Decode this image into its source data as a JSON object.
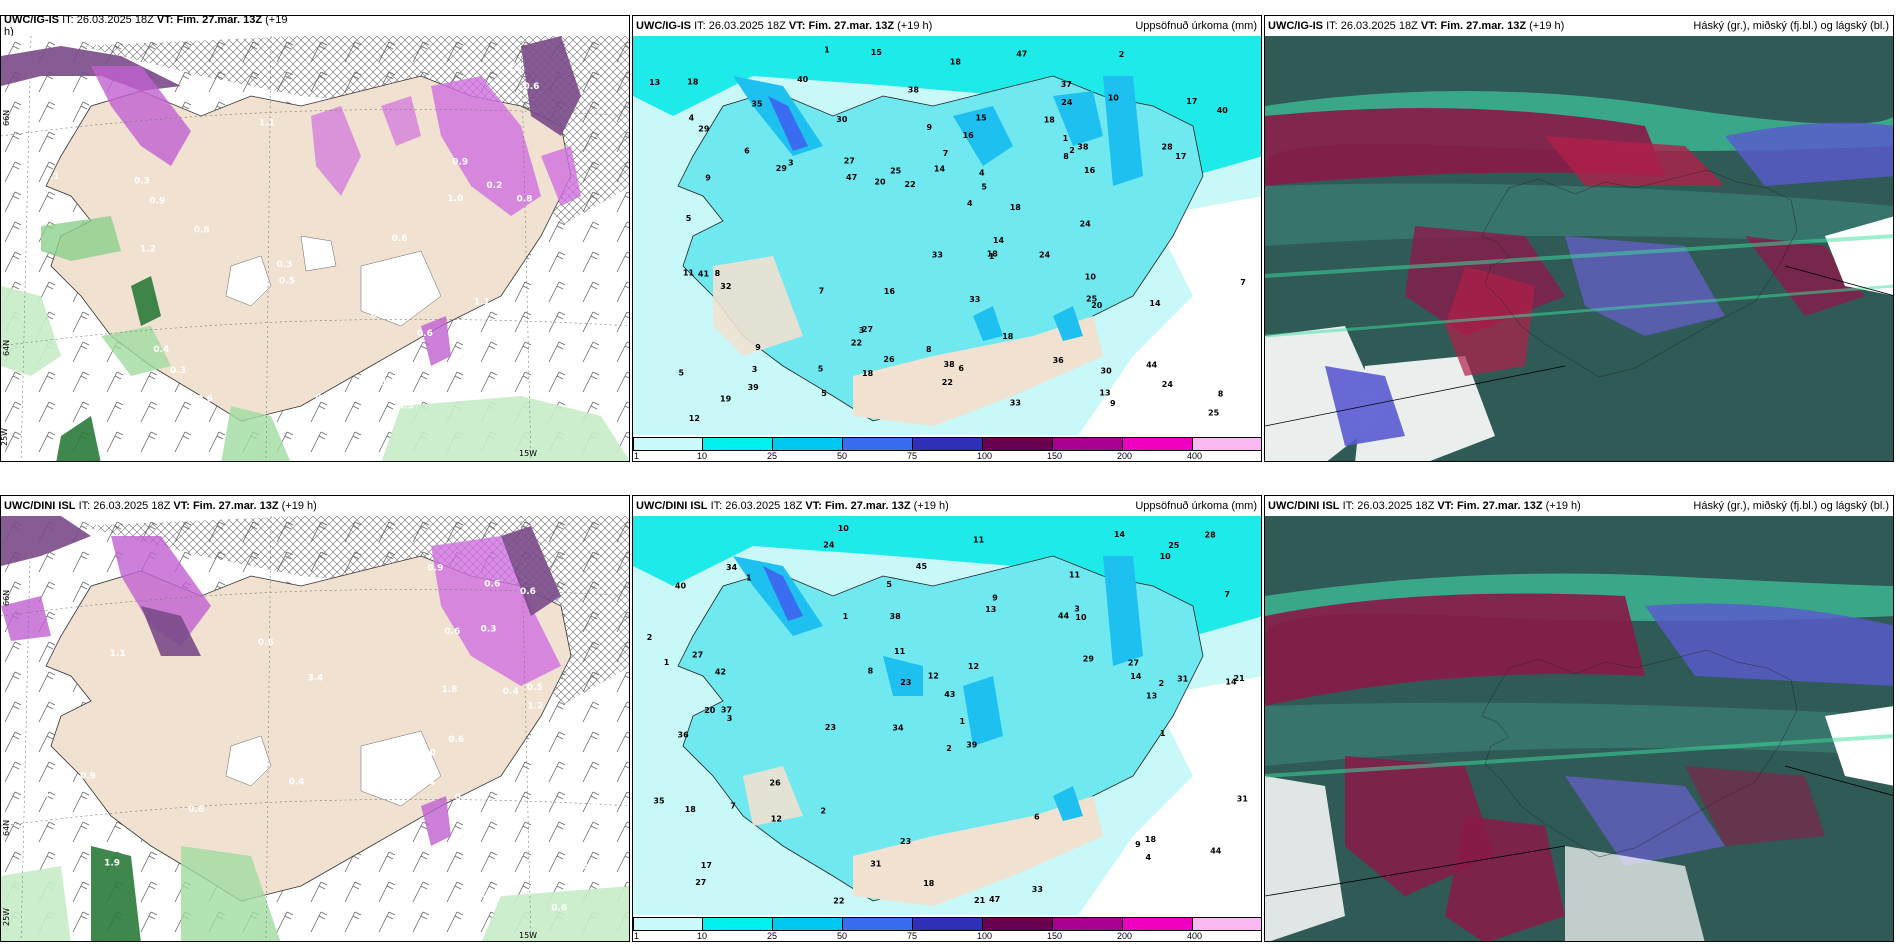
{
  "panels": [
    {
      "id": "p1",
      "model": "UWC/IG-IS",
      "it_label": "IT:",
      "it_value": "26.03.2025 18Z",
      "vt_label": "VT:",
      "vt_value": "Fim. 27.mar. 13Z",
      "lead": "(+19",
      "lead_wrap": "h)",
      "right": "",
      "axis_labels": [
        "25W",
        "15W",
        "64N",
        "66N"
      ],
      "numbers": [
        "0.3",
        "0.3",
        "0.4",
        "0.3",
        "0.2",
        "0.3",
        "1.0",
        "0.8",
        "0.5",
        "0.3",
        "0.7",
        "1.1",
        "0.3",
        "0.9",
        "1.0",
        "0.7",
        "0.5",
        "0.6",
        "1.1",
        "0.8",
        "1.4",
        "0.6",
        "0.6",
        "0.6",
        "0.6",
        "0.9",
        "1.2",
        "0.9",
        "0.5",
        "1.1",
        "0.6"
      ]
    },
    {
      "id": "p2",
      "model": "UWC/IG-IS",
      "it_label": "IT:",
      "it_value": "26.03.2025 18Z",
      "vt_label": "VT:",
      "vt_value": "Fim. 27.mar. 13Z",
      "lead": "(+19 h)",
      "right": "Uppsöfnuð úrkoma (mm)",
      "numbers": [
        "19",
        "14",
        "14",
        "33",
        "38",
        "47",
        "44",
        "37",
        "30",
        "22",
        "25",
        "47",
        "26",
        "18",
        "36",
        "27",
        "25",
        "32",
        "33",
        "40",
        "13",
        "39",
        "22",
        "24",
        "20",
        "24",
        "25",
        "16",
        "17",
        "18",
        "24",
        "16",
        "15",
        "12",
        "18",
        "33",
        "38",
        "16",
        "9",
        "8",
        "29",
        "27",
        "30",
        "18",
        "24",
        "20",
        "7",
        "6",
        "7",
        "8",
        "29",
        "14",
        "18",
        "13",
        "9",
        "35",
        "28",
        "22",
        "18",
        "10",
        "5",
        "1",
        "2",
        "17",
        "9",
        "8",
        "2",
        "3",
        "5",
        "4",
        "3",
        "1",
        "4",
        "7",
        "5",
        "11",
        "18",
        "10",
        "9",
        "8",
        "3",
        "41",
        "38",
        "15",
        "40",
        "5",
        "6",
        "1",
        "4",
        "5"
      ],
      "colorbar": {
        "ticks": [
          "1",
          "10",
          "25",
          "50",
          "75",
          "100",
          "150",
          "200",
          "400"
        ],
        "colors": [
          "#ccfafa",
          "#00f0f0",
          "#00c8f0",
          "#3a6cf0",
          "#2f2fb8",
          "#6a0050",
          "#a80090",
          "#f000c0",
          "#f8b8f0"
        ]
      }
    },
    {
      "id": "p3",
      "model": "UWC/IG-IS",
      "it_label": "IT:",
      "it_value": "26.03.2025 18Z",
      "vt_label": "VT:",
      "vt_value": "Fim. 27.mar. 13Z",
      "lead": "(+19 h)",
      "right": "Háský (gr.), miðský (fj.bl.) og lágský (bl.)"
    },
    {
      "id": "p4",
      "model": "UWC/DINI ISL",
      "it_label": "IT:",
      "it_value": "26.03.2025 18Z",
      "vt_label": "VT:",
      "vt_value": "Fim. 27.mar. 13Z",
      "lead": "(+19 h)",
      "right": "",
      "axis_labels": [
        "25W",
        "15W",
        "64N",
        "66N"
      ],
      "numbers": [
        "0.4",
        "0.3",
        "0.4",
        "0.3",
        "0.2",
        "0.3",
        "0.5",
        "3.4",
        "2.6",
        "0.5",
        "0.6",
        "1.0",
        "0.5",
        "0.4",
        "0.6",
        "0.6",
        "0.6",
        "0.9",
        "0.6",
        "0.6",
        "0.4",
        "1.3",
        "1.8",
        "0.9",
        "1.2",
        "1.9",
        "1.1",
        "0.6"
      ]
    },
    {
      "id": "p5",
      "model": "UWC/DINI ISL",
      "it_label": "IT:",
      "it_value": "26.03.2025 18Z",
      "vt_label": "VT:",
      "vt_value": "Fim. 27.mar. 13Z",
      "lead": "(+19 h)",
      "right": "Uppsöfnuð úrkoma (mm)",
      "numbers": [
        "10",
        "11",
        "14",
        "34",
        "39",
        "37",
        "40",
        "44",
        "36",
        "13",
        "43",
        "27",
        "24",
        "23",
        "21",
        "47",
        "23",
        "14",
        "29",
        "26",
        "42",
        "20",
        "21",
        "31",
        "35",
        "27",
        "23",
        "14",
        "18",
        "18",
        "9",
        "9",
        "7",
        "8",
        "6",
        "31",
        "27",
        "31",
        "28",
        "45",
        "17",
        "22",
        "33",
        "34",
        "18",
        "10",
        "4",
        "3",
        "2",
        "1",
        "5",
        "13",
        "12",
        "10",
        "11",
        "12",
        "11",
        "12",
        "25",
        "38",
        "44",
        "1",
        "1",
        "2",
        "2",
        "1",
        "2",
        "3",
        "1",
        "7"
      ],
      "colorbar": {
        "ticks": [
          "1",
          "10",
          "25",
          "50",
          "75",
          "100",
          "150",
          "200",
          "400"
        ],
        "colors": [
          "#ccfafa",
          "#00f0f0",
          "#00c8f0",
          "#3a6cf0",
          "#2f2fb8",
          "#6a0050",
          "#a80090",
          "#f000c0",
          "#f8b8f0"
        ]
      }
    },
    {
      "id": "p6",
      "model": "UWC/DINI ISL",
      "it_label": "IT:",
      "it_value": "26.03.2025 18Z",
      "vt_label": "VT:",
      "vt_value": "Fim. 27.mar. 13Z",
      "lead": "(+19 h)",
      "right": "Háský (gr.), miðský (fj.bl.) og lágský (bl.)"
    }
  ]
}
